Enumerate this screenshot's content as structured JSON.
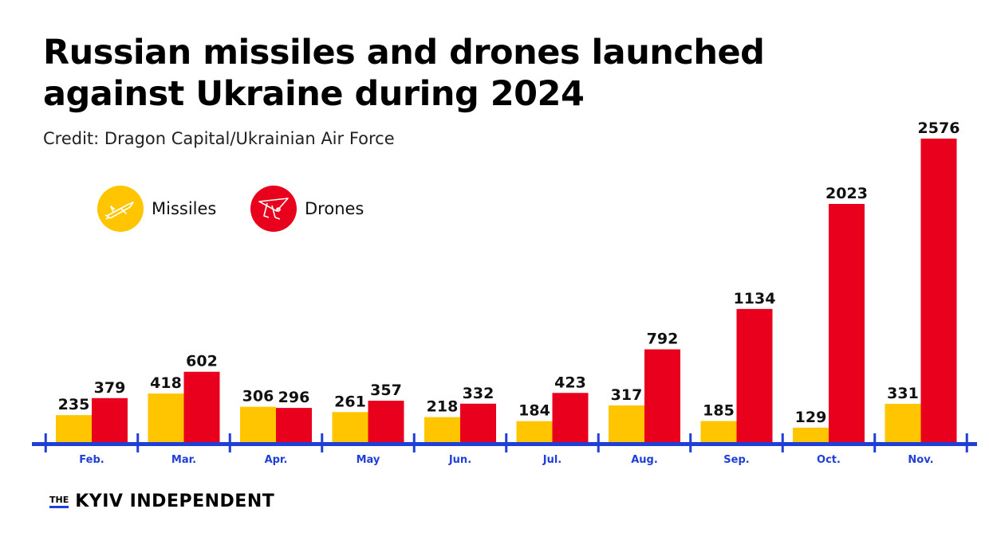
{
  "title": "Russian missiles and drones launched against Ukraine during 2024",
  "credit": "Credit: Dragon Capital/Ukrainian Air Force",
  "legend": {
    "missiles": {
      "label": "Missiles",
      "icon": "missile-icon"
    },
    "drones": {
      "label": "Drones",
      "icon": "drone-icon"
    }
  },
  "colors": {
    "missiles": "#FFC600",
    "drones": "#E8001C",
    "axis": "#1F3FD6",
    "month_label": "#1F3FD6"
  },
  "brand": {
    "the": "THE",
    "name": "KYIV INDEPENDENT"
  },
  "chart_data": {
    "type": "bar",
    "title": "Russian missiles and drones launched against Ukraine during 2024",
    "categories": [
      "Feb.",
      "Mar.",
      "Apr.",
      "May",
      "Jun.",
      "Jul.",
      "Aug.",
      "Sep.",
      "Oct.",
      "Nov."
    ],
    "series": [
      {
        "name": "Missiles",
        "values": [
          235,
          418,
          306,
          261,
          218,
          184,
          317,
          185,
          129,
          331
        ]
      },
      {
        "name": "Drones",
        "values": [
          379,
          602,
          296,
          357,
          332,
          423,
          792,
          1134,
          2023,
          2576
        ]
      }
    ],
    "xlabel": "",
    "ylabel": "",
    "ylim": [
      0,
      2576
    ],
    "grid": false,
    "legend_position": "top-left"
  }
}
